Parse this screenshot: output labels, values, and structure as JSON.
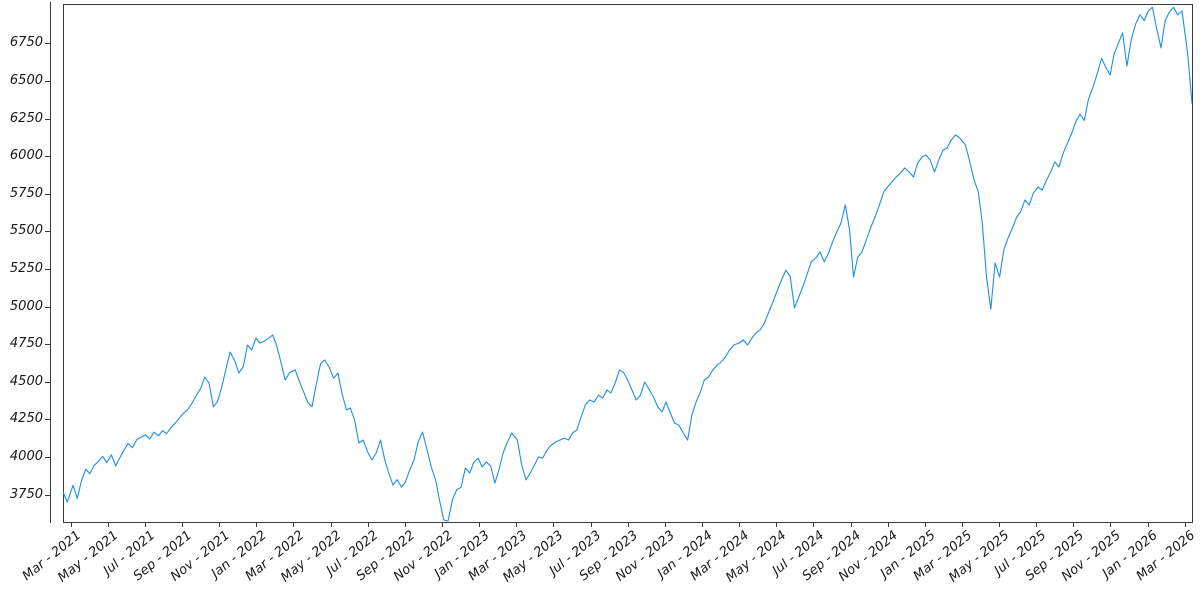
{
  "figure": {
    "background": "#ffffff",
    "spine_color": "#3a3a3a",
    "tick_label_color": "#1a1a1a"
  },
  "chart_data": {
    "type": "line",
    "title": "",
    "xlabel": "",
    "ylabel": "",
    "grid": false,
    "legend": "none",
    "ylim": [
      3568,
      7012
    ],
    "y_ticks": [
      3750,
      4000,
      4250,
      4500,
      4750,
      5000,
      5250,
      5500,
      5750,
      6000,
      6250,
      6500,
      6750
    ],
    "x_ticks": [
      {
        "label": "Mar - 2021",
        "date": "2021-03-01"
      },
      {
        "label": "May - 2021",
        "date": "2021-05-01"
      },
      {
        "label": "Jul - 2021",
        "date": "2021-07-01"
      },
      {
        "label": "Sep - 2021",
        "date": "2021-09-01"
      },
      {
        "label": "Nov - 2021",
        "date": "2021-11-01"
      },
      {
        "label": "Jan - 2022",
        "date": "2022-01-01"
      },
      {
        "label": "Mar - 2022",
        "date": "2022-03-01"
      },
      {
        "label": "May - 2022",
        "date": "2022-05-01"
      },
      {
        "label": "Jul - 2022",
        "date": "2022-07-01"
      },
      {
        "label": "Sep - 2022",
        "date": "2022-09-01"
      },
      {
        "label": "Nov - 2022",
        "date": "2022-11-01"
      },
      {
        "label": "Jan - 2023",
        "date": "2023-01-01"
      },
      {
        "label": "Mar - 2023",
        "date": "2023-03-01"
      },
      {
        "label": "May - 2023",
        "date": "2023-05-01"
      },
      {
        "label": "Jul - 2023",
        "date": "2023-07-01"
      },
      {
        "label": "Sep - 2023",
        "date": "2023-09-01"
      },
      {
        "label": "Nov - 2023",
        "date": "2023-11-01"
      },
      {
        "label": "Jan - 2024",
        "date": "2024-01-01"
      },
      {
        "label": "Mar - 2024",
        "date": "2024-03-01"
      },
      {
        "label": "May - 2024",
        "date": "2024-05-01"
      },
      {
        "label": "Jul - 2024",
        "date": "2024-07-01"
      },
      {
        "label": "Sep - 2024",
        "date": "2024-09-01"
      },
      {
        "label": "Nov - 2024",
        "date": "2024-11-01"
      },
      {
        "label": "Jan - 2025",
        "date": "2025-01-01"
      },
      {
        "label": "Mar - 2025",
        "date": "2025-03-01"
      },
      {
        "label": "May - 2025",
        "date": "2025-05-01"
      },
      {
        "label": "Jul - 2025",
        "date": "2025-07-01"
      },
      {
        "label": "Sep - 2025",
        "date": "2025-09-01"
      },
      {
        "label": "Nov - 2025",
        "date": "2025-11-01"
      },
      {
        "label": "Jan - 2026",
        "date": "2026-01-01"
      },
      {
        "label": "Mar - 2026",
        "date": "2026-03-01"
      }
    ],
    "series": [
      {
        "name": "index-price",
        "color": "#1e8fe2",
        "start_date": "2021-02-19",
        "step_days": 7,
        "values": [
          3768,
          3700,
          3812,
          3724,
          3845,
          3920,
          3888,
          3942,
          3970,
          4005,
          3962,
          4015,
          3940,
          3996,
          4048,
          4090,
          4062,
          4115,
          4132,
          4148,
          4120,
          4165,
          4140,
          4176,
          4155,
          4192,
          4225,
          4258,
          4290,
          4312,
          4355,
          4405,
          4455,
          4532,
          4490,
          4333,
          4370,
          4462,
          4580,
          4698,
          4645,
          4558,
          4600,
          4745,
          4712,
          4790,
          4758,
          4770,
          4790,
          4811,
          4740,
          4631,
          4512,
          4560,
          4579,
          4500,
          4430,
          4360,
          4333,
          4480,
          4620,
          4645,
          4598,
          4525,
          4558,
          4420,
          4313,
          4326,
          4246,
          4093,
          4113,
          4033,
          3980,
          4027,
          4113,
          3980,
          3894,
          3814,
          3850,
          3800,
          3834,
          3914,
          3980,
          4100,
          4166,
          4050,
          3934,
          3847,
          3700,
          3581,
          3575,
          3714,
          3781,
          3800,
          3927,
          3894,
          3967,
          3993,
          3934,
          3967,
          3940,
          3827,
          3914,
          4027,
          4100,
          4160,
          4113,
          3947,
          3847,
          3894,
          3947,
          4000,
          3993,
          4046,
          4080,
          4100,
          4113,
          4126,
          4113,
          4160,
          4180,
          4266,
          4346,
          4379,
          4366,
          4412,
          4392,
          4446,
          4426,
          4492,
          4579,
          4560,
          4512,
          4446,
          4379,
          4412,
          4499,
          4446,
          4399,
          4333,
          4300,
          4366,
          4293,
          4226,
          4213,
          4160,
          4113,
          4279,
          4366,
          4432,
          4512,
          4532,
          4579,
          4612,
          4632,
          4665,
          4712,
          4745,
          4758,
          4778,
          4745,
          4791,
          4825,
          4845,
          4890,
          4960,
          5030,
          5110,
          5180,
          5243,
          5200,
          4991,
          5057,
          5131,
          5210,
          5297,
          5323,
          5363,
          5297,
          5357,
          5430,
          5496,
          5556,
          5676,
          5509,
          5197,
          5330,
          5363,
          5443,
          5530,
          5596,
          5676,
          5762,
          5795,
          5829,
          5862,
          5888,
          5922,
          5895,
          5862,
          5955,
          5995,
          6008,
          5975,
          5895,
          5975,
          6041,
          6054,
          6108,
          6141,
          6121,
          6074,
          5962,
          5842,
          5762,
          5556,
          5197,
          4983,
          5290,
          5197,
          5380,
          5456,
          5522,
          5596,
          5629,
          5709,
          5676,
          5755,
          5795,
          5775,
          5842,
          5895,
          5962,
          5928,
          6021,
          6088,
          6154,
          6228,
          6280,
          6238,
          6380,
          6460,
          6550,
          6650,
          6590,
          6540,
          6680,
          6750,
          6820,
          6600,
          6780,
          6880,
          6940,
          6902,
          6965,
          6990,
          6848,
          6720,
          6902,
          6956,
          6990,
          6940,
          6965,
          6680,
          6352
        ]
      }
    ]
  }
}
